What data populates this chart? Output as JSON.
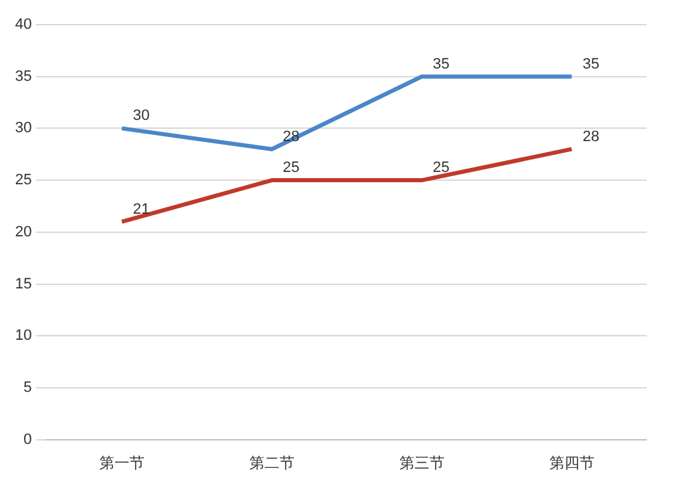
{
  "chart_data": {
    "type": "line",
    "categories": [
      "第一节",
      "第二节",
      "第三节",
      "第四节"
    ],
    "series": [
      {
        "color": "#4a86c8",
        "values": [
          30,
          28,
          35,
          35
        ]
      },
      {
        "color": "#c0392b",
        "values": [
          21,
          25,
          25,
          28
        ]
      }
    ],
    "ylim": [
      0,
      40
    ],
    "yticks": [
      0,
      5,
      10,
      15,
      20,
      25,
      30,
      35,
      40
    ],
    "grid": "y",
    "data_labels": true,
    "marker": "none",
    "line_style": "solid"
  }
}
